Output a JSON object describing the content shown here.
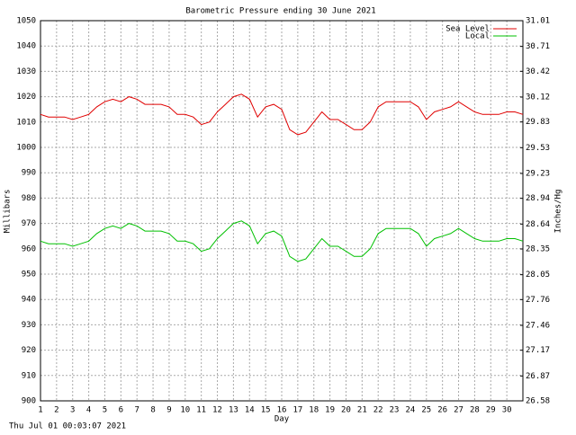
{
  "chart_data": {
    "type": "line",
    "title": "Barometric Pressure ending 30 June 2021",
    "xlabel": "Day",
    "ylabel": "Millibars",
    "y2label": "Inches/Hg",
    "footer": "Thu Jul 01 00:03:07 2021",
    "legend": "top-right",
    "grid": true,
    "x": [
      1,
      1.5,
      2,
      2.5,
      3,
      3.5,
      4,
      4.5,
      5,
      5.5,
      6,
      6.5,
      7,
      7.5,
      8,
      8.5,
      9,
      9.5,
      10,
      10.5,
      11,
      11.5,
      12,
      12.5,
      13,
      13.5,
      14,
      14.5,
      15,
      15.5,
      16,
      16.5,
      17,
      17.5,
      18,
      18.5,
      19,
      19.5,
      20,
      20.5,
      21,
      21.5,
      22,
      22.5,
      23,
      23.5,
      24,
      24.5,
      25,
      25.5,
      26,
      26.5,
      27,
      27.5,
      28,
      28.5,
      29,
      29.5,
      30,
      30.5,
      31
    ],
    "xlim": [
      1,
      31
    ],
    "xticks": [
      1,
      2,
      3,
      4,
      5,
      6,
      7,
      8,
      9,
      10,
      11,
      12,
      13,
      14,
      15,
      16,
      17,
      18,
      19,
      20,
      21,
      22,
      23,
      24,
      25,
      26,
      27,
      28,
      29,
      30
    ],
    "ylim": [
      900,
      1050
    ],
    "yticks": [
      900,
      910,
      920,
      930,
      940,
      950,
      960,
      970,
      980,
      990,
      1000,
      1010,
      1020,
      1030,
      1040,
      1050
    ],
    "y2lim": [
      26.58,
      31.01
    ],
    "y2ticks": [
      26.58,
      26.87,
      27.17,
      27.46,
      27.76,
      28.05,
      28.35,
      28.64,
      28.94,
      29.23,
      29.53,
      29.83,
      30.12,
      30.42,
      30.71,
      31.01
    ],
    "series": [
      {
        "name": "Sea Level",
        "color": "#e00000",
        "values": [
          1013,
          1012,
          1012,
          1012,
          1011,
          1012,
          1013,
          1016,
          1018,
          1019,
          1018,
          1020,
          1019,
          1017,
          1017,
          1017,
          1016,
          1013,
          1013,
          1012,
          1009,
          1010,
          1014,
          1017,
          1020,
          1021,
          1019,
          1012,
          1016,
          1017,
          1015,
          1007,
          1005,
          1006,
          1010,
          1014,
          1011,
          1011,
          1009,
          1007,
          1007,
          1010,
          1016,
          1018,
          1018,
          1018,
          1018,
          1016,
          1011,
          1014,
          1015,
          1016,
          1018,
          1016,
          1014,
          1013,
          1013,
          1013,
          1014,
          1014,
          1013
        ]
      },
      {
        "name": "Local",
        "color": "#00c000",
        "values": [
          963,
          962,
          962,
          962,
          961,
          962,
          963,
          966,
          968,
          969,
          968,
          970,
          969,
          967,
          967,
          967,
          966,
          963,
          963,
          962,
          959,
          960,
          964,
          967,
          970,
          971,
          969,
          962,
          966,
          967,
          965,
          957,
          955,
          956,
          960,
          964,
          961,
          961,
          959,
          957,
          957,
          960,
          966,
          968,
          968,
          968,
          968,
          966,
          961,
          964,
          965,
          966,
          968,
          966,
          964,
          963,
          963,
          963,
          964,
          964,
          963
        ]
      }
    ]
  }
}
